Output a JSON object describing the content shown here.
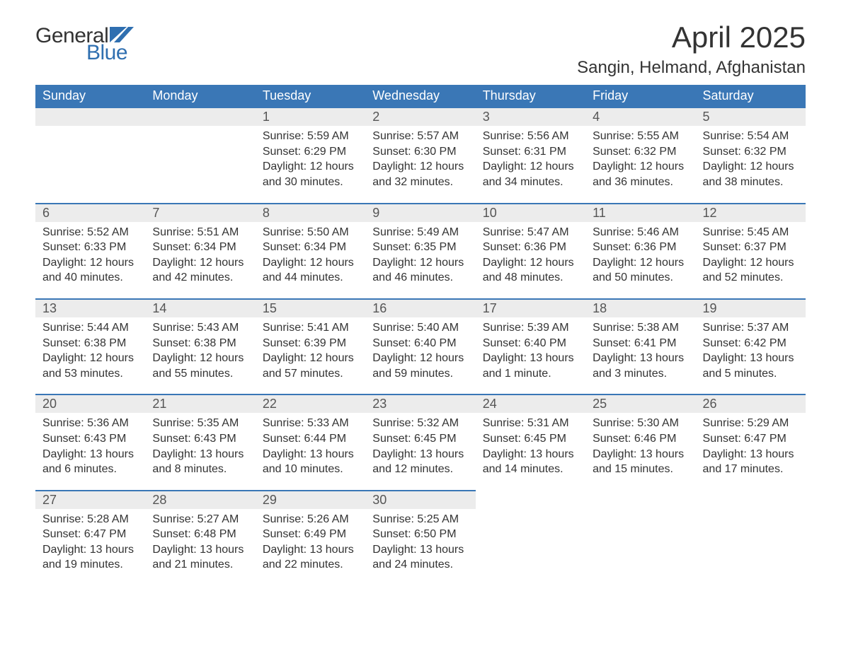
{
  "brand": {
    "word1": "General",
    "word2": "Blue",
    "accent_color": "#2f6fb0"
  },
  "header": {
    "title": "April 2025",
    "location": "Sangin, Helmand, Afghanistan"
  },
  "calendar": {
    "header_bg": "#3a77b6",
    "header_fg": "#ffffff",
    "daynum_bg": "#ececec",
    "border_color": "#3a77b6",
    "text_color": "#333333",
    "font_family": "Segoe UI",
    "title_fontsize": 42,
    "location_fontsize": 24,
    "header_fontsize": 18,
    "daynum_fontsize": 18,
    "body_fontsize": 16,
    "columns": [
      "Sunday",
      "Monday",
      "Tuesday",
      "Wednesday",
      "Thursday",
      "Friday",
      "Saturday"
    ],
    "weeks": [
      [
        null,
        null,
        {
          "n": "1",
          "sr": "Sunrise: 5:59 AM",
          "ss": "Sunset: 6:29 PM",
          "d1": "Daylight: 12 hours",
          "d2": "and 30 minutes."
        },
        {
          "n": "2",
          "sr": "Sunrise: 5:57 AM",
          "ss": "Sunset: 6:30 PM",
          "d1": "Daylight: 12 hours",
          "d2": "and 32 minutes."
        },
        {
          "n": "3",
          "sr": "Sunrise: 5:56 AM",
          "ss": "Sunset: 6:31 PM",
          "d1": "Daylight: 12 hours",
          "d2": "and 34 minutes."
        },
        {
          "n": "4",
          "sr": "Sunrise: 5:55 AM",
          "ss": "Sunset: 6:32 PM",
          "d1": "Daylight: 12 hours",
          "d2": "and 36 minutes."
        },
        {
          "n": "5",
          "sr": "Sunrise: 5:54 AM",
          "ss": "Sunset: 6:32 PM",
          "d1": "Daylight: 12 hours",
          "d2": "and 38 minutes."
        }
      ],
      [
        {
          "n": "6",
          "sr": "Sunrise: 5:52 AM",
          "ss": "Sunset: 6:33 PM",
          "d1": "Daylight: 12 hours",
          "d2": "and 40 minutes."
        },
        {
          "n": "7",
          "sr": "Sunrise: 5:51 AM",
          "ss": "Sunset: 6:34 PM",
          "d1": "Daylight: 12 hours",
          "d2": "and 42 minutes."
        },
        {
          "n": "8",
          "sr": "Sunrise: 5:50 AM",
          "ss": "Sunset: 6:34 PM",
          "d1": "Daylight: 12 hours",
          "d2": "and 44 minutes."
        },
        {
          "n": "9",
          "sr": "Sunrise: 5:49 AM",
          "ss": "Sunset: 6:35 PM",
          "d1": "Daylight: 12 hours",
          "d2": "and 46 minutes."
        },
        {
          "n": "10",
          "sr": "Sunrise: 5:47 AM",
          "ss": "Sunset: 6:36 PM",
          "d1": "Daylight: 12 hours",
          "d2": "and 48 minutes."
        },
        {
          "n": "11",
          "sr": "Sunrise: 5:46 AM",
          "ss": "Sunset: 6:36 PM",
          "d1": "Daylight: 12 hours",
          "d2": "and 50 minutes."
        },
        {
          "n": "12",
          "sr": "Sunrise: 5:45 AM",
          "ss": "Sunset: 6:37 PM",
          "d1": "Daylight: 12 hours",
          "d2": "and 52 minutes."
        }
      ],
      [
        {
          "n": "13",
          "sr": "Sunrise: 5:44 AM",
          "ss": "Sunset: 6:38 PM",
          "d1": "Daylight: 12 hours",
          "d2": "and 53 minutes."
        },
        {
          "n": "14",
          "sr": "Sunrise: 5:43 AM",
          "ss": "Sunset: 6:38 PM",
          "d1": "Daylight: 12 hours",
          "d2": "and 55 minutes."
        },
        {
          "n": "15",
          "sr": "Sunrise: 5:41 AM",
          "ss": "Sunset: 6:39 PM",
          "d1": "Daylight: 12 hours",
          "d2": "and 57 minutes."
        },
        {
          "n": "16",
          "sr": "Sunrise: 5:40 AM",
          "ss": "Sunset: 6:40 PM",
          "d1": "Daylight: 12 hours",
          "d2": "and 59 minutes."
        },
        {
          "n": "17",
          "sr": "Sunrise: 5:39 AM",
          "ss": "Sunset: 6:40 PM",
          "d1": "Daylight: 13 hours",
          "d2": "and 1 minute."
        },
        {
          "n": "18",
          "sr": "Sunrise: 5:38 AM",
          "ss": "Sunset: 6:41 PM",
          "d1": "Daylight: 13 hours",
          "d2": "and 3 minutes."
        },
        {
          "n": "19",
          "sr": "Sunrise: 5:37 AM",
          "ss": "Sunset: 6:42 PM",
          "d1": "Daylight: 13 hours",
          "d2": "and 5 minutes."
        }
      ],
      [
        {
          "n": "20",
          "sr": "Sunrise: 5:36 AM",
          "ss": "Sunset: 6:43 PM",
          "d1": "Daylight: 13 hours",
          "d2": "and 6 minutes."
        },
        {
          "n": "21",
          "sr": "Sunrise: 5:35 AM",
          "ss": "Sunset: 6:43 PM",
          "d1": "Daylight: 13 hours",
          "d2": "and 8 minutes."
        },
        {
          "n": "22",
          "sr": "Sunrise: 5:33 AM",
          "ss": "Sunset: 6:44 PM",
          "d1": "Daylight: 13 hours",
          "d2": "and 10 minutes."
        },
        {
          "n": "23",
          "sr": "Sunrise: 5:32 AM",
          "ss": "Sunset: 6:45 PM",
          "d1": "Daylight: 13 hours",
          "d2": "and 12 minutes."
        },
        {
          "n": "24",
          "sr": "Sunrise: 5:31 AM",
          "ss": "Sunset: 6:45 PM",
          "d1": "Daylight: 13 hours",
          "d2": "and 14 minutes."
        },
        {
          "n": "25",
          "sr": "Sunrise: 5:30 AM",
          "ss": "Sunset: 6:46 PM",
          "d1": "Daylight: 13 hours",
          "d2": "and 15 minutes."
        },
        {
          "n": "26",
          "sr": "Sunrise: 5:29 AM",
          "ss": "Sunset: 6:47 PM",
          "d1": "Daylight: 13 hours",
          "d2": "and 17 minutes."
        }
      ],
      [
        {
          "n": "27",
          "sr": "Sunrise: 5:28 AM",
          "ss": "Sunset: 6:47 PM",
          "d1": "Daylight: 13 hours",
          "d2": "and 19 minutes."
        },
        {
          "n": "28",
          "sr": "Sunrise: 5:27 AM",
          "ss": "Sunset: 6:48 PM",
          "d1": "Daylight: 13 hours",
          "d2": "and 21 minutes."
        },
        {
          "n": "29",
          "sr": "Sunrise: 5:26 AM",
          "ss": "Sunset: 6:49 PM",
          "d1": "Daylight: 13 hours",
          "d2": "and 22 minutes."
        },
        {
          "n": "30",
          "sr": "Sunrise: 5:25 AM",
          "ss": "Sunset: 6:50 PM",
          "d1": "Daylight: 13 hours",
          "d2": "and 24 minutes."
        },
        null,
        null,
        null
      ]
    ]
  }
}
